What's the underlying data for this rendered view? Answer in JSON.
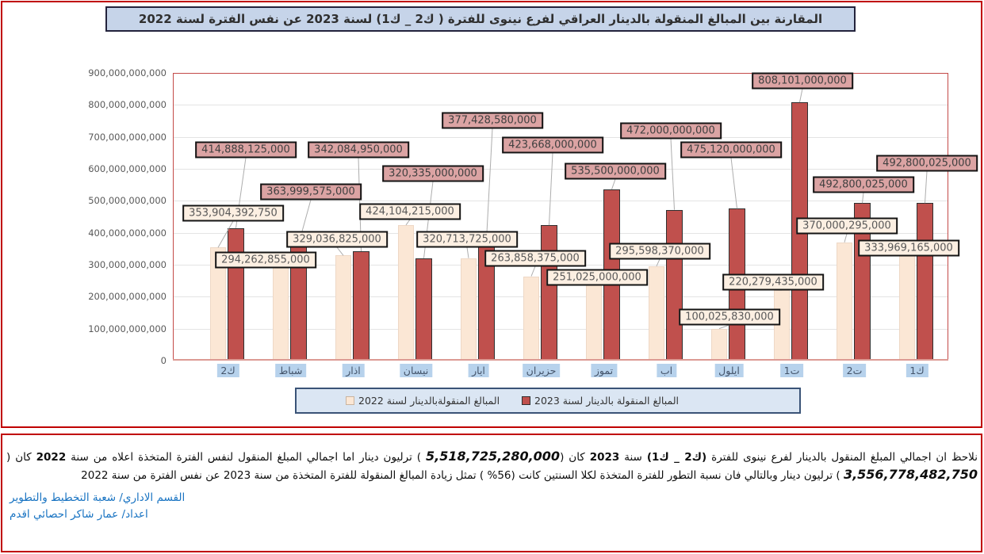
{
  "chart_data": {
    "type": "bar",
    "title": "المقارنة بين المبالغ المنقولة بالدينار العراقي لفرع نينوى للفترة ( ك2 _ ك1) لسنة 2023 عن نفس الفترة لسنة 2022",
    "categories": [
      "ك2",
      "شباط",
      "اذار",
      "نيسان",
      "ايار",
      "حزيران",
      "تموز",
      "اب",
      "ايلول",
      "ت1",
      "ت2",
      "ك1"
    ],
    "series": [
      {
        "name": "المبالغ المنقولةبالدينار لسنة 2022",
        "color": "#fbe7d5",
        "values": [
          353904392750,
          294262855000,
          329036825000,
          424104215000,
          320713725000,
          263858375000,
          251025000000,
          295598370000,
          100025830000,
          220279435000,
          370000295000,
          333969165000
        ]
      },
      {
        "name": "المبالغ المنقولة بالدينار لسنة 2023",
        "color": "#c0504d",
        "values": [
          414888125000,
          363999575000,
          342084950000,
          320335000000,
          377428580000,
          423668000000,
          535500000000,
          472000000000,
          475120000000,
          808101000000,
          492800025000,
          492800025000
        ]
      }
    ],
    "ylim": [
      0,
      900000000000
    ],
    "ytick_step": 100000000000,
    "grid": true,
    "data_labels": true,
    "legend_position": "bottom",
    "xlabel": "",
    "ylabel": ""
  },
  "colors": {
    "bar_2022": "#fbe7d5",
    "bar_2023": "#c0504d",
    "data_label_box_2022": "#fcefe2",
    "data_label_box_2023": "#dba3a3",
    "section_border": "#c00000",
    "title_background": "#c6d4e9",
    "legend_background": "#dbe6f3",
    "x_label_highlight": "#b7d2ec",
    "footer_accent": "#1873c2"
  },
  "footer": {
    "paragraph_segments": [
      {
        "text": "نلاحظ ان اجمالي المبلغ المنقول بالدينار لفرع نينوى للفترة ",
        "style": "normal"
      },
      {
        "text": "(ك2 _ ك1)",
        "style": "bold"
      },
      {
        "text": " سنة ",
        "style": "normal"
      },
      {
        "text": "2023",
        "style": "bold"
      },
      {
        "text": " كان (",
        "style": "normal"
      },
      {
        "text": "5,518,725,280,000",
        "style": "number"
      },
      {
        "text": " ) ترليون دينار اما اجمالي المبلغ المنقول لنفس الفترة المتخذة اعلاه من سنة ",
        "style": "normal"
      },
      {
        "text": "2022",
        "style": "bold"
      },
      {
        "text": " كان ( ",
        "style": "normal"
      },
      {
        "text": "3,556,778,482,750",
        "style": "number"
      },
      {
        "text": " ) ترليون دينار وبالتالي فان نسبة التطور للفترة المتخذة لكلا السنتين كانت (56% ) تمثل زيادة المبالغ المنقولة للفترة المتخذة من سنة 2023 عن نفس الفترة من سنة 2022",
        "style": "normal"
      }
    ],
    "department_line": "القسم الاداري/ شعبة التخطيط والتطوير",
    "prepared_by_line": "اعداد/ عمار شاكر احصائي اقدم"
  }
}
